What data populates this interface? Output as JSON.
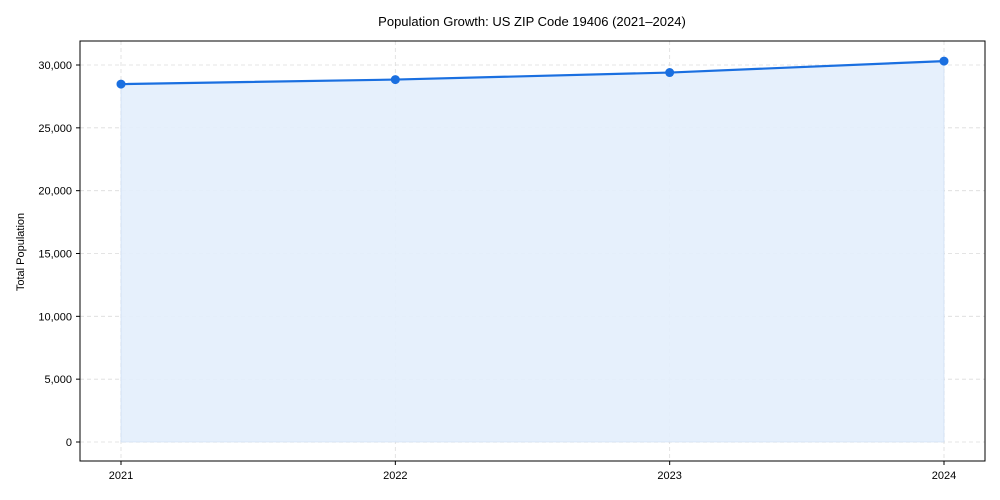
{
  "chart_data": {
    "type": "line",
    "title": "Population Growth: US ZIP Code 19406 (2021–2024)",
    "xlabel": "",
    "ylabel": "Total Population",
    "categories": [
      "2021",
      "2022",
      "2023",
      "2024"
    ],
    "series": [
      {
        "name": "Total Population",
        "values": [
          28480,
          28840,
          29400,
          30310
        ],
        "color": "#1a6fe0",
        "fill": "#e3eefc",
        "marker": "circle",
        "area_fill": true
      }
    ],
    "ylim": [
      -1600,
      31600
    ],
    "yticks": [
      0,
      5000,
      10000,
      15000,
      20000,
      25000,
      30000
    ],
    "ytick_labels": [
      "0",
      "5,000",
      "10,000",
      "15,000",
      "20,000",
      "25,000",
      "30,000"
    ],
    "grid": true,
    "legend": null
  }
}
